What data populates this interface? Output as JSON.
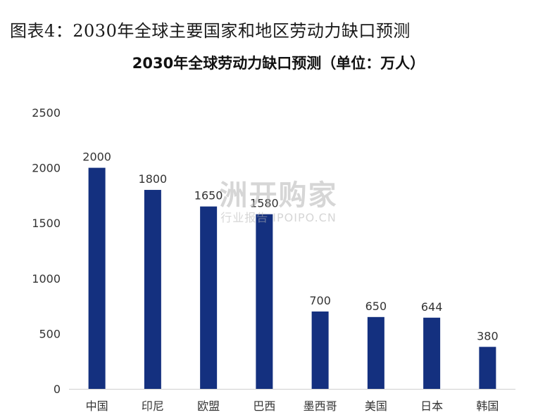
{
  "figure_title": "图表4：2030年全球主要国家和地区劳动力缺口预测",
  "watermark": {
    "main": "洲开购家",
    "sub": "行业报告 IPOIPO.CN"
  },
  "colors": {
    "bar": "#14307f",
    "axis": "#d0d0d0",
    "text": "#333333"
  },
  "chart_data": {
    "type": "bar",
    "title": "2030年全球劳动力缺口预测（单位：万人）",
    "xlabel": "",
    "ylabel": "",
    "categories": [
      "中国",
      "印尼",
      "欧盟",
      "巴西",
      "墨西哥",
      "美国",
      "日本",
      "韩国"
    ],
    "values": [
      2000,
      1800,
      1650,
      1580,
      700,
      650,
      644,
      380
    ],
    "ylim": [
      0,
      2500
    ],
    "yticks": [
      0,
      500,
      1000,
      1500,
      2000,
      2500
    ],
    "grid": false,
    "data_labels": true
  }
}
